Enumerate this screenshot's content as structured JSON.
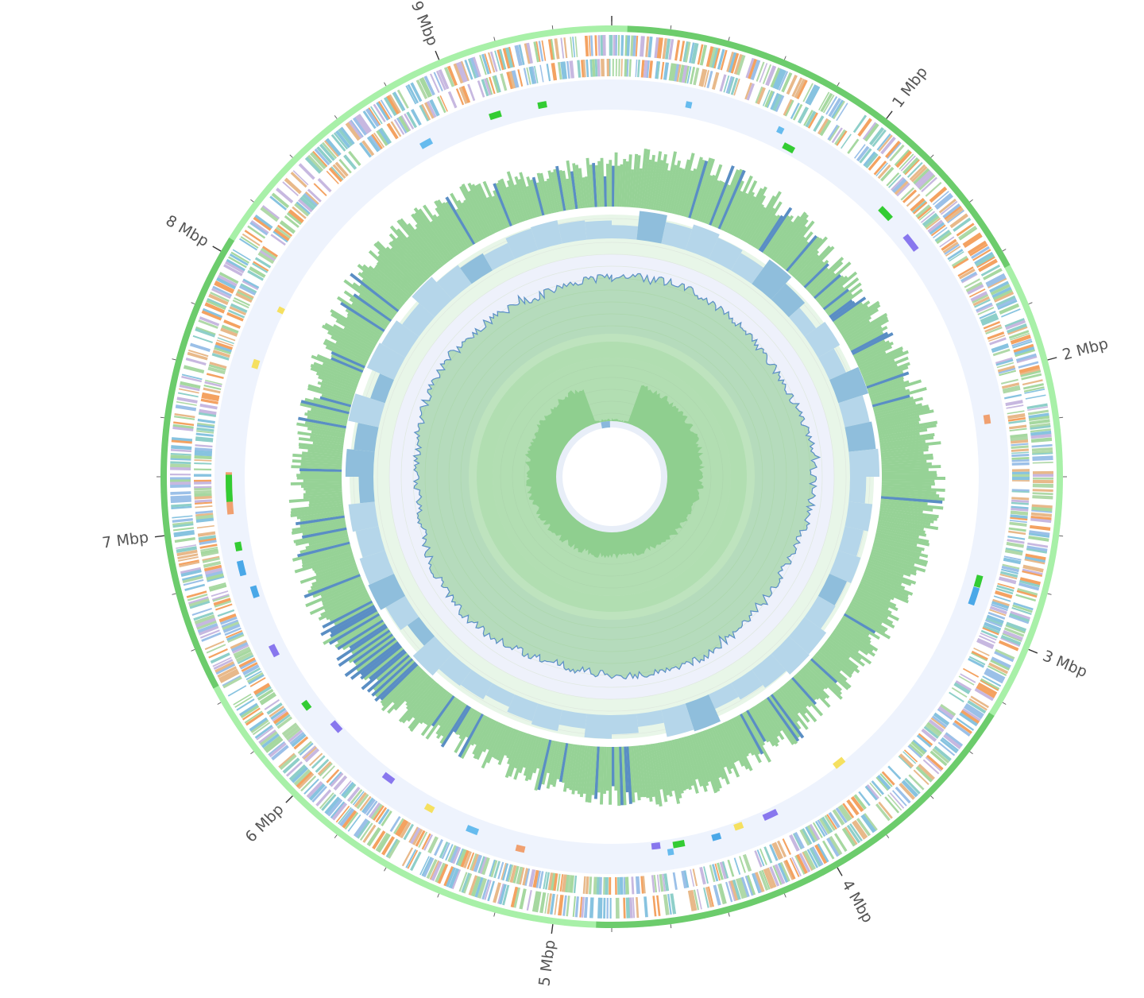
{
  "genome_map": {
    "position_labels": [
      {
        "text": "1 Mbp",
        "mbp": 1
      },
      {
        "text": "2 Mbp",
        "mbp": 2
      },
      {
        "text": "3 Mbp",
        "mbp": 3
      },
      {
        "text": "4 Mbp",
        "mbp": 4
      },
      {
        "text": "5 Mbp",
        "mbp": 5
      },
      {
        "text": "6 Mbp",
        "mbp": 6
      },
      {
        "text": "7 Mbp",
        "mbp": 7
      },
      {
        "text": "8 Mbp",
        "mbp": 8
      },
      {
        "text": "9 Mbp",
        "mbp": 9
      }
    ],
    "total_mbp": 9.6,
    "colors": {
      "backbone_light": "#a8f0a8",
      "backbone_dark": "#6ccc6c",
      "cog_palette": [
        "#8ecfc9",
        "#f4a261",
        "#9bc0e8",
        "#a6d8a0",
        "#c7b8e0",
        "#87c3e0",
        "#e8b98a",
        "#b0d9a8"
      ],
      "ncrna": [
        "#33cc33",
        "#66bbee",
        "#f0a070",
        "#8877ee",
        "#f5e060",
        "#4aa8e8"
      ],
      "track_bg": "#eef3fd",
      "gc_positive": "#96d296",
      "gc_negative": "#5a8ec4",
      "depth_band": "#b5d6ea",
      "depth_band_dark": "#8fbedc",
      "skew_bg": "#e8f6e8",
      "skew_line": "#5b8fc7",
      "skew_fill": "#6fc06f",
      "inner_area": "#8fcf8f",
      "inner_arc": "#8ab8dd"
    }
  }
}
